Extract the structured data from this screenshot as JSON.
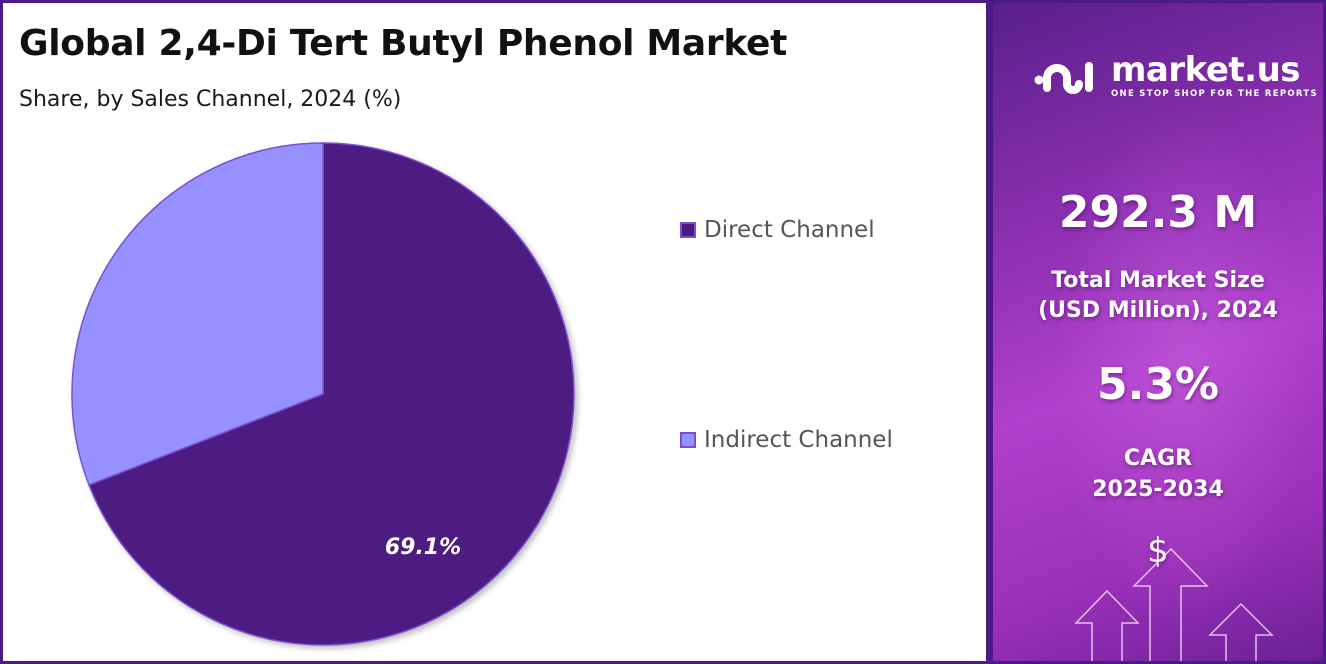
{
  "header": {
    "title": "Global 2,4-Di Tert Butyl Phenol Market",
    "subtitle": "Share, by Sales Channel, 2024 (%)"
  },
  "legend": {
    "items": [
      {
        "label": "Direct Channel",
        "color": "#4e1a82"
      },
      {
        "label": "Indirect Channel",
        "color": "#9691fe"
      }
    ]
  },
  "pie": {
    "data_label": "69.1%"
  },
  "sidebar": {
    "brand": {
      "name": "market.us",
      "tagline": "ONE STOP SHOP FOR THE REPORTS"
    },
    "market_size_value": "292.3 M",
    "market_size_label_line1": "Total Market Size",
    "market_size_label_line2": "(USD Million), 2024",
    "cagr_value": "5.3%",
    "cagr_label_line1": "CAGR",
    "cagr_label_line2": "2025-2034",
    "dollar_symbol": "$"
  },
  "colors": {
    "border": "#4b1a85",
    "direct": "#4e1a82",
    "indirect": "#9691fe",
    "slice_stroke": "#7b4fd1"
  },
  "chart_data": {
    "type": "pie",
    "title": "Global 2,4-Di Tert Butyl Phenol Market",
    "subtitle": "Share, by Sales Channel, 2024 (%)",
    "categories": [
      "Direct Channel",
      "Indirect Channel"
    ],
    "values": [
      69.1,
      30.9
    ],
    "data_labels": [
      "69.1%",
      ""
    ],
    "colors": [
      "#4e1a82",
      "#9691fe"
    ],
    "legend_position": "right",
    "start_angle": "12 o'clock, clockwise"
  }
}
